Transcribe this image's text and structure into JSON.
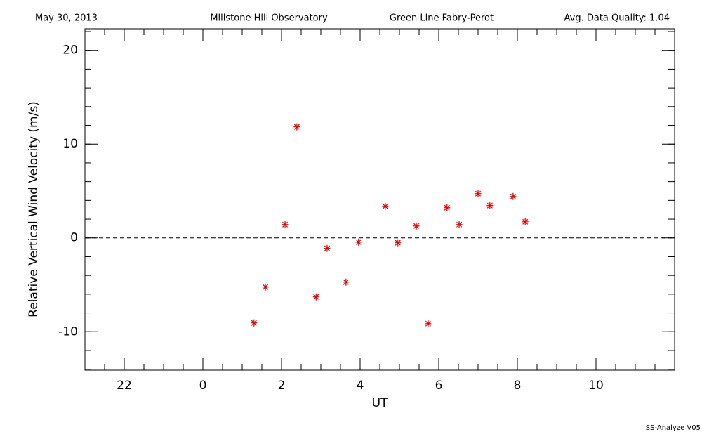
{
  "chart_data": {
    "type": "scatter",
    "header": [
      "May 30, 2013",
      "Millstone Hill Observatory",
      "Green Line Fabry-Perot",
      "Avg. Data Quality: 1.04"
    ],
    "footer": "SS-Analyze V05",
    "xlabel": "UT",
    "ylabel": "Relative Vertical Wind Velocity (m/s)",
    "xlim": [
      -3,
      12
    ],
    "ylim": [
      -14.1,
      22.3
    ],
    "xticks": [
      {
        "value": -2,
        "label": "22"
      },
      0,
      2,
      4,
      6,
      8,
      10
    ],
    "yticks": [
      -10,
      0,
      10,
      20
    ],
    "reference_line": 0,
    "color": "#e00000",
    "x": [
      1.3,
      1.59,
      2.09,
      2.39,
      2.88,
      3.16,
      3.64,
      3.96,
      4.64,
      4.96,
      5.43,
      5.73,
      6.21,
      6.52,
      7.0,
      7.3,
      7.89,
      8.2
    ],
    "values": [
      -9.06,
      -5.24,
      1.42,
      11.84,
      -6.29,
      -1.12,
      -4.72,
      -0.45,
      3.37,
      -0.52,
      1.27,
      -9.14,
      3.22,
      1.42,
      4.72,
      3.45,
      4.42,
      1.72
    ]
  }
}
